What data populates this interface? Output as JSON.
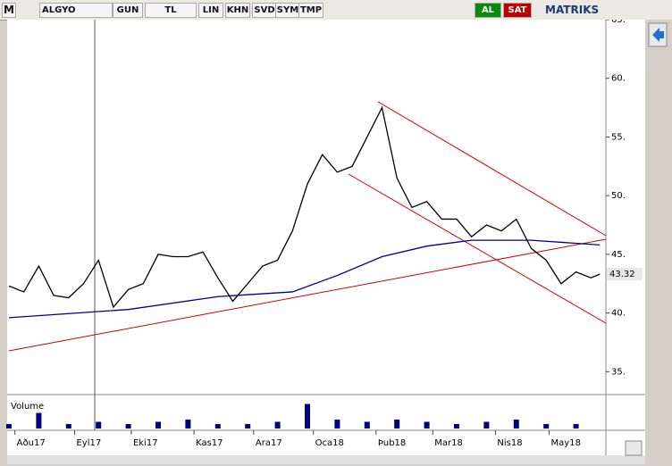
{
  "toolbar": {
    "logo": "M",
    "symbol": "ALGYO",
    "period": "GUN",
    "currency": "TL",
    "buttons": [
      "LIN",
      "KHN",
      "SVD",
      "SYM",
      "TMP"
    ],
    "buy": "AL",
    "sell": "SAT",
    "brand": "MATRIKS"
  },
  "chart_data": {
    "type": "line",
    "xlim": [
      0,
      200
    ],
    "xticks": [
      {
        "value": 2,
        "label": "Aðu17"
      },
      {
        "value": 22,
        "label": "Eyl17"
      },
      {
        "value": 41,
        "label": "Eki17"
      },
      {
        "value": 62,
        "label": "Kas17"
      },
      {
        "value": 82,
        "label": "Ara17"
      },
      {
        "value": 102,
        "label": "Oca18"
      },
      {
        "value": 123,
        "label": "Þub18"
      },
      {
        "value": 142,
        "label": "Mar18"
      },
      {
        "value": 163,
        "label": "Nis18"
      },
      {
        "value": 181,
        "label": "May18"
      }
    ],
    "ylim": [
      33.2,
      65
    ],
    "yticks": [
      {
        "value": 35,
        "label": "35."
      },
      {
        "value": 40,
        "label": "40."
      },
      {
        "value": 45,
        "label": "45."
      },
      {
        "value": 50,
        "label": "50."
      },
      {
        "value": 55,
        "label": "55."
      },
      {
        "value": 60,
        "label": "60."
      },
      {
        "value": 65,
        "label": "65."
      }
    ],
    "series": [
      {
        "name": "ALGYO",
        "color": "#000000",
        "x": [
          0,
          5,
          10,
          15,
          20,
          25,
          30,
          35,
          40,
          45,
          50,
          55,
          60,
          65,
          70,
          75,
          80,
          85,
          90,
          95,
          100,
          105,
          110,
          115,
          120,
          125,
          130,
          135,
          140,
          145,
          150,
          155,
          160,
          165,
          170,
          175,
          180,
          185,
          190,
          195,
          198
        ],
        "values": [
          42.3,
          41.8,
          44,
          41.5,
          41.3,
          42.5,
          44.5,
          40.5,
          42,
          42.5,
          45,
          44.8,
          44.8,
          45.2,
          43,
          41,
          42.5,
          44,
          44.5,
          47,
          51,
          53.5,
          52,
          52.5,
          55,
          57.5,
          51.5,
          49,
          49.5,
          48,
          48,
          46.5,
          47.5,
          47,
          48,
          45.5,
          44.5,
          42.5,
          43.5,
          43,
          43.32
        ]
      },
      {
        "color": "#00008b",
        "x": [
          0,
          40,
          70,
          95,
          110,
          125,
          140,
          155,
          175,
          198
        ],
        "values": [
          39.6,
          40.3,
          41.4,
          41.8,
          43.2,
          44.8,
          45.7,
          46.2,
          46.2,
          45.8
        ]
      }
    ],
    "volume": {
      "label": "Volume",
      "color": "#000080",
      "ylim": [
        0,
        12
      ],
      "x": [
        0,
        10,
        20,
        30,
        40,
        50,
        60,
        70,
        80,
        90,
        100,
        110,
        120,
        130,
        140,
        150,
        160,
        170,
        180,
        190
      ],
      "values": [
        2,
        7,
        2,
        3,
        2,
        3,
        4,
        2,
        2,
        3,
        11,
        4,
        3,
        4,
        3,
        2,
        3,
        4,
        2,
        2
      ]
    }
  }
}
